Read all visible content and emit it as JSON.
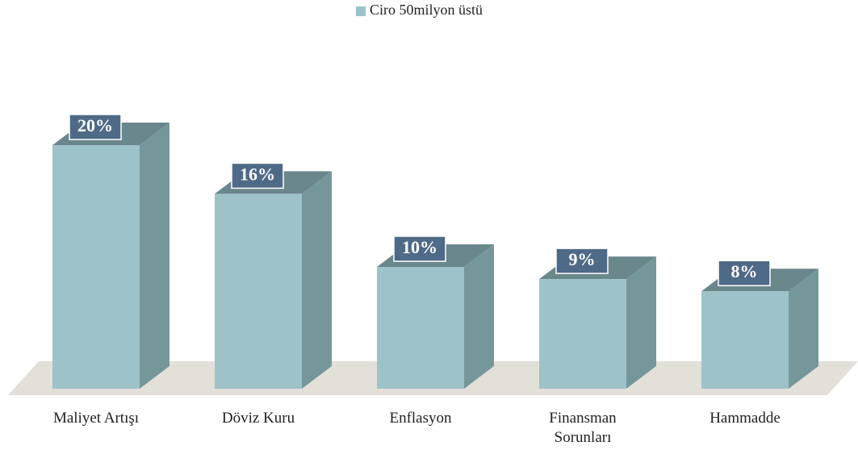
{
  "chart_data": {
    "type": "bar3d",
    "categories": [
      "Maliyet Artışı",
      "Döviz Kuru",
      "Enflasyon",
      "Finansman Sorunları",
      "Hammadde"
    ],
    "series": [
      {
        "name": "Ciro 50milyon üstü",
        "color": "#9dc3c9",
        "values": [
          20,
          16,
          10,
          9,
          8
        ],
        "value_labels": [
          "20%",
          "16%",
          "10%",
          "9%",
          "8%"
        ]
      }
    ],
    "legend": "top"
  }
}
